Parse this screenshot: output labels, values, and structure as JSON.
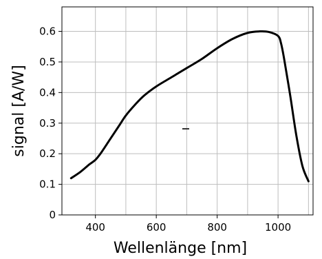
{
  "chart_data": {
    "type": "line",
    "title": "",
    "xlabel": "Wellenlänge [nm]",
    "ylabel": "signal [A/W]",
    "xlim": [
      290,
      1115
    ],
    "ylim": [
      0,
      0.68
    ],
    "x_ticks": [
      400,
      600,
      800,
      1000
    ],
    "y_ticks": [
      0,
      0.1,
      0.2,
      0.3,
      0.4,
      0.5,
      0.6
    ],
    "x_tick_labels": [
      "400",
      "600",
      "800",
      "1000"
    ],
    "y_tick_labels": [
      "0",
      "0.1",
      "0.2",
      "0.3",
      "0.4",
      "0.5",
      "0.6"
    ],
    "x_grid": [
      400,
      500,
      600,
      700,
      800,
      900,
      1000,
      1100
    ],
    "y_grid": [
      0.1,
      0.2,
      0.3,
      0.4,
      0.5,
      0.6
    ],
    "grid": true,
    "legend": "none",
    "series": [
      {
        "color": "#000000",
        "x": [
          320,
          350,
          380,
          400,
          420,
          450,
          480,
          500,
          530,
          560,
          600,
          650,
          700,
          750,
          800,
          850,
          900,
          940,
          970,
          1000,
          1010,
          1020,
          1040,
          1060,
          1080,
          1100
        ],
        "y": [
          0.12,
          0.14,
          0.165,
          0.18,
          0.205,
          0.25,
          0.295,
          0.325,
          0.36,
          0.39,
          0.42,
          0.45,
          0.48,
          0.51,
          0.545,
          0.575,
          0.595,
          0.6,
          0.598,
          0.585,
          0.56,
          0.51,
          0.39,
          0.26,
          0.16,
          0.11
        ]
      }
    ]
  }
}
